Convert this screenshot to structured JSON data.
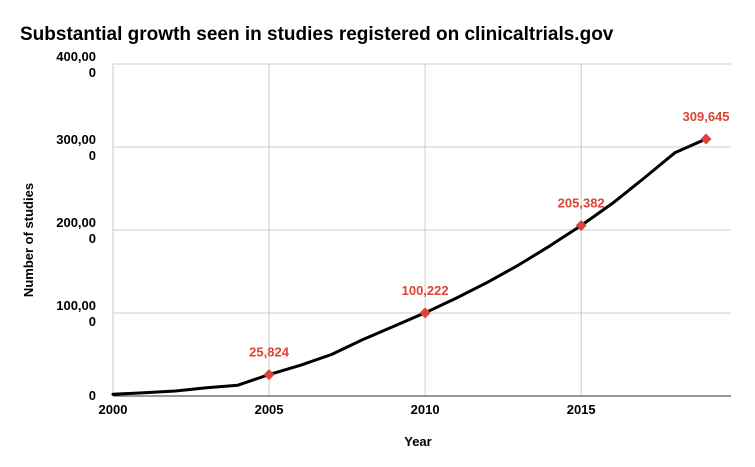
{
  "chart_data": {
    "type": "line",
    "title": "Substantial growth seen in studies registered on clinicaltrials.gov",
    "xlabel": "Year",
    "ylabel": "Number of studies",
    "xlim": [
      2000,
      2019.8
    ],
    "ylim": [
      0,
      400000
    ],
    "x_ticks": [
      "2000",
      "2005",
      "2010",
      "2015"
    ],
    "y_ticks": [
      {
        "value": 0,
        "lines": [
          "0"
        ]
      },
      {
        "value": 100000,
        "lines": [
          "100,00",
          "0"
        ]
      },
      {
        "value": 200000,
        "lines": [
          "200,00",
          "0"
        ]
      },
      {
        "value": 300000,
        "lines": [
          "300,00",
          "0"
        ]
      },
      {
        "value": 400000,
        "lines": [
          "400,00",
          "0"
        ]
      }
    ],
    "grid": true,
    "series": [
      {
        "x": [
          2000,
          2001,
          2002,
          2003,
          2004,
          2005,
          2006,
          2007,
          2008,
          2009,
          2010,
          2011,
          2012,
          2013,
          2014,
          2015,
          2016,
          2017,
          2018,
          2019
        ],
        "y": [
          2000,
          4000,
          6000,
          10000,
          13000,
          25824,
          37000,
          50000,
          68000,
          84000,
          100222,
          118000,
          137000,
          158000,
          181000,
          205382,
          232000,
          262000,
          293000,
          309645
        ],
        "line_color": "#000000"
      }
    ],
    "annotations": [
      {
        "x": 2005,
        "y": 25824,
        "label": "25,824"
      },
      {
        "x": 2010,
        "y": 100222,
        "label": "100,222"
      },
      {
        "x": 2015,
        "y": 205382,
        "label": "205,382"
      },
      {
        "x": 2019,
        "y": 309645,
        "label": "309,645"
      }
    ],
    "marker_color": "#db4437"
  }
}
